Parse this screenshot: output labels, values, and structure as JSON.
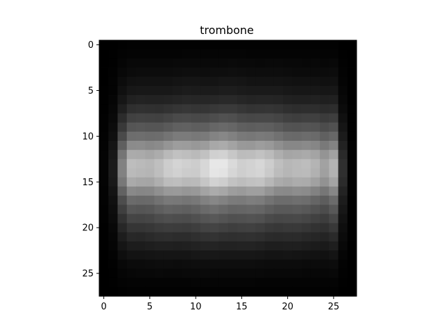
{
  "chart_data": {
    "type": "heatmap",
    "title": "trombone",
    "colormap": "gray",
    "xlabel": "",
    "ylabel": "",
    "rows": 28,
    "cols": 28,
    "xlim": [
      -0.5,
      27.5
    ],
    "ylim": [
      27.5,
      -0.5
    ],
    "x_ticks": [
      0,
      5,
      10,
      15,
      20,
      25
    ],
    "y_ticks": [
      0,
      5,
      10,
      15,
      20,
      25
    ],
    "grid": false,
    "description_of_values": "grayscale average-image intensity (0-1); bright horizontal band centered near rows 12-16, columns 2-26, dark borders at columns 0 and 27 and at top/bottom rows",
    "row_profile": [
      0.01,
      0.02,
      0.04,
      0.06,
      0.09,
      0.12,
      0.17,
      0.24,
      0.33,
      0.43,
      0.55,
      0.7,
      0.86,
      0.95,
      0.94,
      0.86,
      0.7,
      0.55,
      0.45,
      0.36,
      0.28,
      0.21,
      0.15,
      0.1,
      0.06,
      0.04,
      0.02,
      0.01
    ],
    "col_profile": [
      0.02,
      0.12,
      0.55,
      0.78,
      0.8,
      0.82,
      0.84,
      0.86,
      0.88,
      0.9,
      0.92,
      0.94,
      0.96,
      0.96,
      0.95,
      0.93,
      0.91,
      0.89,
      0.86,
      0.84,
      0.82,
      0.8,
      0.78,
      0.76,
      0.72,
      0.8,
      0.2,
      0.01
    ]
  }
}
